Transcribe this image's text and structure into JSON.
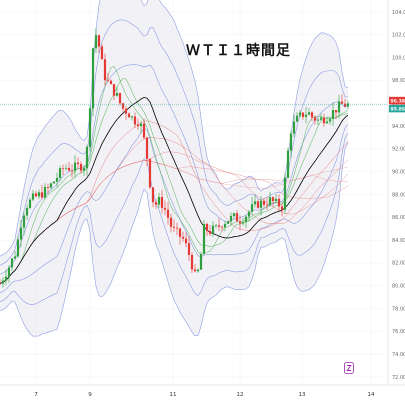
{
  "chart_data": {
    "type": "candlestick",
    "title": "ＷＴＩ１時間足",
    "x_tick_labels": [
      {
        "label": "7",
        "t": 36
      },
      {
        "label": "9",
        "t": 90
      },
      {
        "label": "11",
        "t": 173
      },
      {
        "label": "12",
        "t": 240
      },
      {
        "label": "13",
        "t": 302
      },
      {
        "label": "14",
        "t": 371
      }
    ],
    "y_ticks": [
      72,
      74,
      76,
      78,
      80,
      82,
      84,
      86,
      88,
      90,
      92,
      94,
      96,
      98,
      100,
      102,
      104
    ],
    "ylim": [
      71,
      105
    ],
    "price_labels": [
      {
        "value": "96.38",
        "color": "#e53935"
      },
      {
        "value": "95.86",
        "color": "#26a69a"
      }
    ],
    "current_price": 95.86,
    "up_color": "#2e9e3e",
    "down_color": "#e53935",
    "band_color": "#7b8ee0",
    "band_fill": "#e8e8ee",
    "moving_average_colors": [
      "#000000",
      "#4caf50",
      "#e57373"
    ],
    "price_path": [
      [
        0,
        80.2
      ],
      [
        8,
        81.5
      ],
      [
        16,
        83.0
      ],
      [
        22,
        86.0
      ],
      [
        26,
        87.0
      ],
      [
        32,
        87.6
      ],
      [
        40,
        88.0
      ],
      [
        48,
        88.5
      ],
      [
        56,
        89.4
      ],
      [
        64,
        90.4
      ],
      [
        72,
        90.3
      ],
      [
        80,
        90.5
      ],
      [
        86,
        90.6
      ],
      [
        90,
        96.0
      ],
      [
        94,
        102.5
      ],
      [
        98,
        101.5
      ],
      [
        104,
        98.5
      ],
      [
        110,
        97.5
      ],
      [
        116,
        96.8
      ],
      [
        122,
        95.6
      ],
      [
        128,
        95.2
      ],
      [
        134,
        94.5
      ],
      [
        140,
        94.4
      ],
      [
        146,
        92.0
      ],
      [
        150,
        89.0
      ],
      [
        154,
        87.0
      ],
      [
        160,
        87.5
      ],
      [
        166,
        86.5
      ],
      [
        172,
        85.0
      ],
      [
        178,
        84.5
      ],
      [
        184,
        84.0
      ],
      [
        190,
        82.5
      ],
      [
        196,
        80.5
      ],
      [
        200,
        82.0
      ],
      [
        204,
        85.0
      ],
      [
        210,
        84.8
      ],
      [
        216,
        85.0
      ],
      [
        222,
        85.5
      ],
      [
        228,
        85.8
      ],
      [
        234,
        86.0
      ],
      [
        240,
        85.8
      ],
      [
        246,
        86.2
      ],
      [
        252,
        86.8
      ],
      [
        258,
        87.2
      ],
      [
        264,
        87.3
      ],
      [
        270,
        87.5
      ],
      [
        276,
        87.2
      ],
      [
        282,
        87.0
      ],
      [
        286,
        90.0
      ],
      [
        290,
        93.5
      ],
      [
        296,
        94.5
      ],
      [
        302,
        95.0
      ],
      [
        308,
        95.2
      ],
      [
        312,
        94.8
      ],
      [
        318,
        94.5
      ],
      [
        324,
        94.7
      ],
      [
        330,
        95.0
      ],
      [
        336,
        95.5
      ],
      [
        342,
        95.9
      ],
      [
        348,
        95.86
      ]
    ]
  }
}
